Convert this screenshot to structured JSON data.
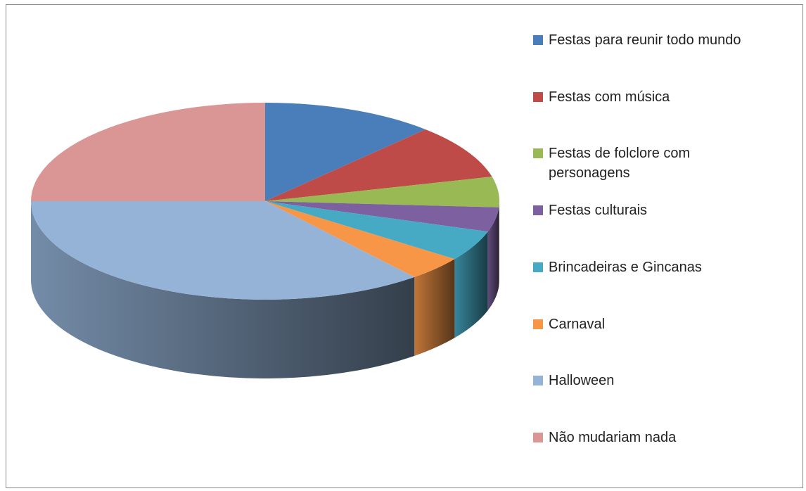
{
  "chart_data": {
    "type": "pie3d",
    "categories": [
      "Festas para reunir todo mundo",
      "Festas com música",
      "Festas de folclore com personagens",
      "Festas culturais",
      "Brincadeiras e Gincanas",
      "Carnaval",
      "Halloween",
      "Não mudariam nada"
    ],
    "values": [
      12,
      9,
      5,
      4,
      5,
      4,
      36,
      25
    ],
    "colors": [
      "#4a7ebb",
      "#be4b48",
      "#98b954",
      "#7d60a0",
      "#46aac5",
      "#f79646",
      "#95b3d7",
      "#d99694"
    ],
    "legend": "right"
  }
}
